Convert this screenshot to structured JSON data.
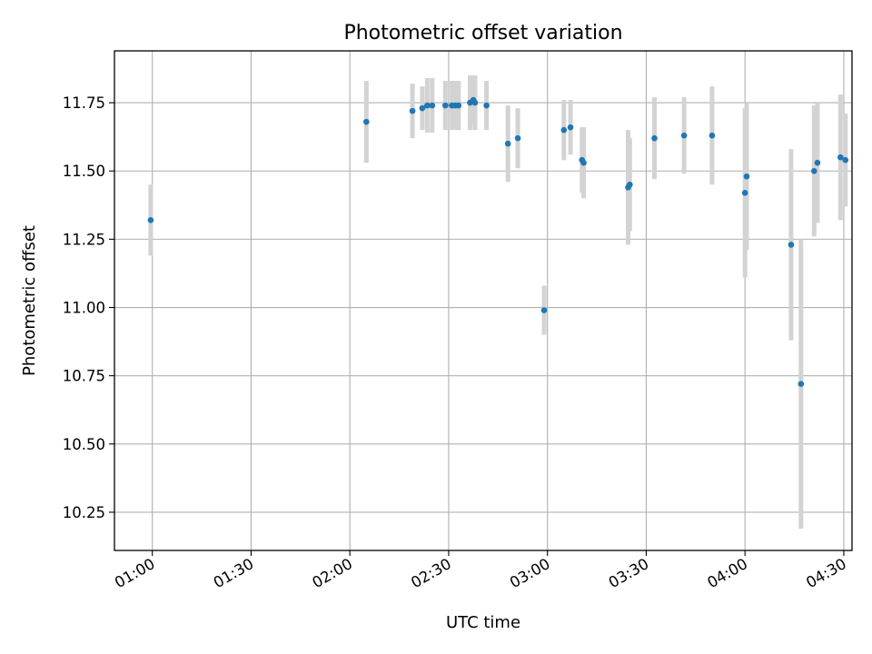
{
  "chart_data": {
    "type": "scatter",
    "title": "Photometric offset variation",
    "xlabel": "UTC time",
    "ylabel": "Photometric offset",
    "x_unit": "UTC clock time (HH:MM)",
    "xlim": [
      "00:48:30",
      "04:32:30"
    ],
    "ylim": [
      10.11,
      11.94
    ],
    "x_ticks": [
      "01:00",
      "01:30",
      "02:00",
      "02:30",
      "03:00",
      "03:30",
      "04:00",
      "04:30"
    ],
    "y_ticks": [
      "10.25",
      "10.50",
      "10.75",
      "11.00",
      "11.25",
      "11.50",
      "11.75"
    ],
    "y_tick_values": [
      10.25,
      10.5,
      10.75,
      11.0,
      11.25,
      11.5,
      11.75
    ],
    "grid": true,
    "colors": {
      "marker": "#1f77b4",
      "errorbar": "#d3d3d3",
      "grid": "#b0b0b0"
    },
    "series": [
      {
        "marker": "point",
        "errorbars": true,
        "points": [
          {
            "t": "00:59:30",
            "y": 11.32,
            "err": 0.13
          },
          {
            "t": "02:05:00",
            "y": 11.68,
            "err": 0.15
          },
          {
            "t": "02:19:00",
            "y": 11.72,
            "err": 0.1
          },
          {
            "t": "02:22:00",
            "y": 11.73,
            "err": 0.08
          },
          {
            "t": "02:23:30",
            "y": 11.74,
            "err": 0.1
          },
          {
            "t": "02:25:00",
            "y": 11.74,
            "err": 0.1
          },
          {
            "t": "02:29:00",
            "y": 11.74,
            "err": 0.09
          },
          {
            "t": "02:31:00",
            "y": 11.74,
            "err": 0.09
          },
          {
            "t": "02:32:00",
            "y": 11.74,
            "err": 0.09
          },
          {
            "t": "02:33:00",
            "y": 11.74,
            "err": 0.09
          },
          {
            "t": "02:36:30",
            "y": 11.75,
            "err": 0.1
          },
          {
            "t": "02:37:30",
            "y": 11.76,
            "err": 0.09
          },
          {
            "t": "02:38:00",
            "y": 11.75,
            "err": 0.1
          },
          {
            "t": "02:41:30",
            "y": 11.74,
            "err": 0.09
          },
          {
            "t": "02:48:00",
            "y": 11.6,
            "err": 0.14
          },
          {
            "t": "02:51:00",
            "y": 11.62,
            "err": 0.11
          },
          {
            "t": "02:59:00",
            "y": 10.99,
            "err": 0.09
          },
          {
            "t": "03:05:00",
            "y": 11.65,
            "err": 0.11
          },
          {
            "t": "03:07:00",
            "y": 11.66,
            "err": 0.1
          },
          {
            "t": "03:10:30",
            "y": 11.54,
            "err": 0.12
          },
          {
            "t": "03:11:00",
            "y": 11.53,
            "err": 0.13
          },
          {
            "t": "03:24:30",
            "y": 11.44,
            "err": 0.21
          },
          {
            "t": "03:25:00",
            "y": 11.45,
            "err": 0.17
          },
          {
            "t": "03:32:30",
            "y": 11.62,
            "err": 0.15
          },
          {
            "t": "03:41:30",
            "y": 11.63,
            "err": 0.14
          },
          {
            "t": "03:50:00",
            "y": 11.63,
            "err": 0.18
          },
          {
            "t": "04:00:00",
            "y": 11.42,
            "err": 0.31
          },
          {
            "t": "04:00:30",
            "y": 11.48,
            "err": 0.27
          },
          {
            "t": "04:14:00",
            "y": 11.23,
            "err": 0.35
          },
          {
            "t": "04:17:00",
            "y": 10.72,
            "err": 0.53
          },
          {
            "t": "04:21:00",
            "y": 11.5,
            "err": 0.24
          },
          {
            "t": "04:22:00",
            "y": 11.53,
            "err": 0.22
          },
          {
            "t": "04:29:00",
            "y": 11.55,
            "err": 0.23
          },
          {
            "t": "04:30:30",
            "y": 11.54,
            "err": 0.17
          }
        ]
      }
    ]
  }
}
